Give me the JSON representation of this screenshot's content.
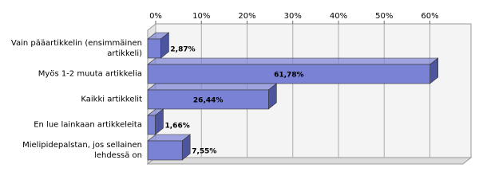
{
  "chart_data": {
    "type": "hbar3d",
    "categories": [
      "Vain pääartikkelin (ensimmäinen artikkeli)",
      "Myös 1-2 muuta artikkelia",
      "Kaikki artikkelit",
      "En lue lainkaan artikkeleita",
      "Mielipidepalstan, jos sellainen lehdessä on"
    ],
    "values": [
      2.87,
      61.78,
      26.44,
      1.66,
      7.55
    ],
    "value_labels": [
      "2,87%",
      "61,78%",
      "26,44%",
      "1,66%",
      "7,55%"
    ],
    "color": "#7a82d6",
    "xlim": [
      0,
      69
    ],
    "xticks": [
      {
        "value": 0,
        "label": "0%"
      },
      {
        "value": 10,
        "label": "10%"
      },
      {
        "value": 20,
        "label": "20%"
      },
      {
        "value": 30,
        "label": "30%"
      },
      {
        "value": 40,
        "label": "40%"
      },
      {
        "value": 50,
        "label": "50%"
      },
      {
        "value": 60,
        "label": "60%"
      }
    ],
    "grid": true
  }
}
